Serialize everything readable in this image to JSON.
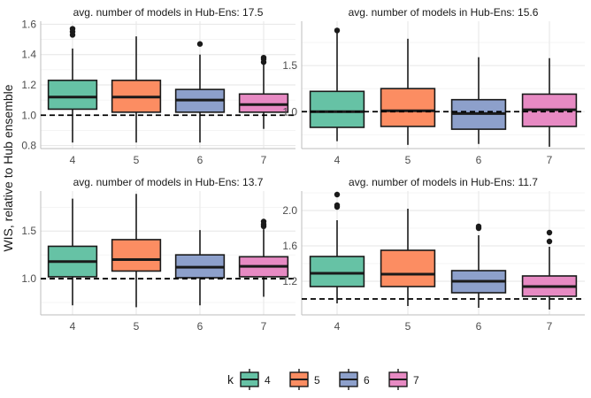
{
  "ylabel": "WIS, relative to Hub ensemble",
  "legend": {
    "title": "k",
    "position": "bottom",
    "items": [
      {
        "label": "4",
        "color": "#66C2A5"
      },
      {
        "label": "5",
        "color": "#FC8D62"
      },
      {
        "label": "6",
        "color": "#8DA0CB"
      },
      {
        "label": "7",
        "color": "#E78AC3"
      }
    ]
  },
  "chart_data": [
    {
      "type": "box",
      "title": "avg. number of models in Hub-Ens: 17.5",
      "categories": [
        "4",
        "5",
        "6",
        "7"
      ],
      "yticks": [
        0.8,
        1.0,
        1.2,
        1.4,
        1.6
      ],
      "ytick_labels": [
        "0.8",
        "1.0",
        "1.2",
        "1.4",
        "1.6"
      ],
      "ylim": [
        0.78,
        1.62
      ],
      "reference_line": 1.0,
      "boxes": [
        {
          "category": "4",
          "min": 0.82,
          "q1": 1.04,
          "median": 1.12,
          "q3": 1.23,
          "max": 1.44,
          "outliers": [
            1.53,
            1.55,
            1.57
          ]
        },
        {
          "category": "5",
          "min": 0.82,
          "q1": 1.02,
          "median": 1.12,
          "q3": 1.23,
          "max": 1.52,
          "outliers": []
        },
        {
          "category": "6",
          "min": 0.82,
          "q1": 1.02,
          "median": 1.1,
          "q3": 1.17,
          "max": 1.4,
          "outliers": [
            1.47
          ]
        },
        {
          "category": "7",
          "min": 0.91,
          "q1": 1.02,
          "median": 1.07,
          "q3": 1.14,
          "max": 1.34,
          "outliers": [
            1.35,
            1.37,
            1.38
          ]
        }
      ]
    },
    {
      "type": "box",
      "title": "avg. number of models in Hub-Ens: 15.6",
      "categories": [
        "4",
        "5",
        "6",
        "7"
      ],
      "yticks": [
        1.0,
        1.5
      ],
      "ytick_labels": [
        "1.0",
        "1.5"
      ],
      "ylim": [
        0.6,
        1.98
      ],
      "reference_line": 1.0,
      "boxes": [
        {
          "category": "4",
          "min": 0.68,
          "q1": 0.83,
          "median": 1.0,
          "q3": 1.22,
          "max": 1.87,
          "outliers": [
            1.88
          ]
        },
        {
          "category": "5",
          "min": 0.64,
          "q1": 0.84,
          "median": 1.01,
          "q3": 1.25,
          "max": 1.79,
          "outliers": []
        },
        {
          "category": "6",
          "min": 0.65,
          "q1": 0.81,
          "median": 0.98,
          "q3": 1.13,
          "max": 1.59,
          "outliers": []
        },
        {
          "category": "7",
          "min": 0.62,
          "q1": 0.84,
          "median": 1.02,
          "q3": 1.19,
          "max": 1.58,
          "outliers": []
        }
      ]
    },
    {
      "type": "box",
      "title": "avg. number of models in Hub-Ens: 13.7",
      "categories": [
        "4",
        "5",
        "6",
        "7"
      ],
      "yticks": [
        1.0,
        1.5
      ],
      "ytick_labels": [
        "1.0",
        "1.5"
      ],
      "ylim": [
        0.62,
        1.92
      ],
      "reference_line": 1.0,
      "boxes": [
        {
          "category": "4",
          "min": 0.72,
          "q1": 1.02,
          "median": 1.18,
          "q3": 1.34,
          "max": 1.84,
          "outliers": []
        },
        {
          "category": "5",
          "min": 0.7,
          "q1": 1.08,
          "median": 1.2,
          "q3": 1.41,
          "max": 1.89,
          "outliers": []
        },
        {
          "category": "6",
          "min": 0.72,
          "q1": 1.01,
          "median": 1.12,
          "q3": 1.25,
          "max": 1.51,
          "outliers": []
        },
        {
          "category": "7",
          "min": 0.81,
          "q1": 1.02,
          "median": 1.13,
          "q3": 1.23,
          "max": 1.52,
          "outliers": [
            1.55,
            1.57,
            1.6
          ]
        }
      ]
    },
    {
      "type": "box",
      "title": "avg. number of models in Hub-Ens: 11.7",
      "categories": [
        "4",
        "5",
        "6",
        "7"
      ],
      "yticks": [
        1.2,
        1.6,
        2.0
      ],
      "ytick_labels": [
        "1.2",
        "1.6",
        "2.0"
      ],
      "ylim": [
        0.82,
        2.22
      ],
      "reference_line": 1.0,
      "boxes": [
        {
          "category": "4",
          "min": 0.95,
          "q1": 1.14,
          "median": 1.29,
          "q3": 1.48,
          "max": 1.89,
          "outliers": [
            2.04,
            2.06,
            2.18
          ]
        },
        {
          "category": "5",
          "min": 0.92,
          "q1": 1.14,
          "median": 1.28,
          "q3": 1.55,
          "max": 2.02,
          "outliers": []
        },
        {
          "category": "6",
          "min": 0.9,
          "q1": 1.07,
          "median": 1.2,
          "q3": 1.32,
          "max": 1.72,
          "outliers": [
            1.8,
            1.82
          ]
        },
        {
          "category": "7",
          "min": 0.88,
          "q1": 1.03,
          "median": 1.14,
          "q3": 1.26,
          "max": 1.59,
          "outliers": [
            1.65,
            1.75
          ]
        }
      ]
    }
  ]
}
